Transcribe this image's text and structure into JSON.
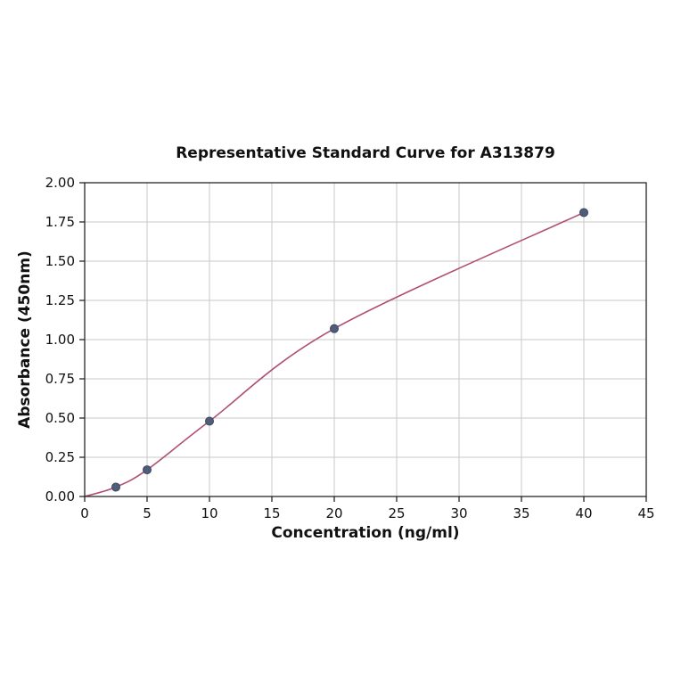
{
  "chart_data": {
    "type": "line",
    "title": "Representative Standard Curve for A313879",
    "xlabel": "Concentration (ng/ml)",
    "ylabel": "Absorbance (450nm)",
    "xlim": [
      0,
      45
    ],
    "ylim": [
      0,
      2.0
    ],
    "grid": true,
    "legend": "none",
    "xticks": {
      "values": [
        0,
        5,
        10,
        15,
        20,
        25,
        30,
        35,
        40,
        45
      ],
      "labels": [
        "0",
        "5",
        "10",
        "15",
        "20",
        "25",
        "30",
        "35",
        "40",
        "45"
      ]
    },
    "yticks": {
      "values": [
        0,
        0.25,
        0.5,
        0.75,
        1.0,
        1.25,
        1.5,
        1.75,
        2.0
      ],
      "labels": [
        "0.00",
        "0.25",
        "0.50",
        "0.75",
        "1.00",
        "1.25",
        "1.50",
        "1.75",
        "2.00"
      ]
    },
    "series": [
      {
        "name": "standard-curve",
        "points_x": [
          2.5,
          5,
          10,
          20,
          40
        ],
        "points_y": [
          0.06,
          0.17,
          0.48,
          1.07,
          1.81
        ],
        "curve_x": [
          0,
          2.5,
          5,
          10,
          20,
          40
        ],
        "curve_y": [
          0.0,
          0.06,
          0.17,
          0.48,
          1.07,
          1.81
        ]
      }
    ],
    "colors": {
      "line": "#b04f76",
      "marker_fill": "#4f5d78",
      "marker_edge": "#3a4761",
      "grid": "#c9c9c9",
      "axis": "#262626",
      "text": "#111111"
    }
  }
}
